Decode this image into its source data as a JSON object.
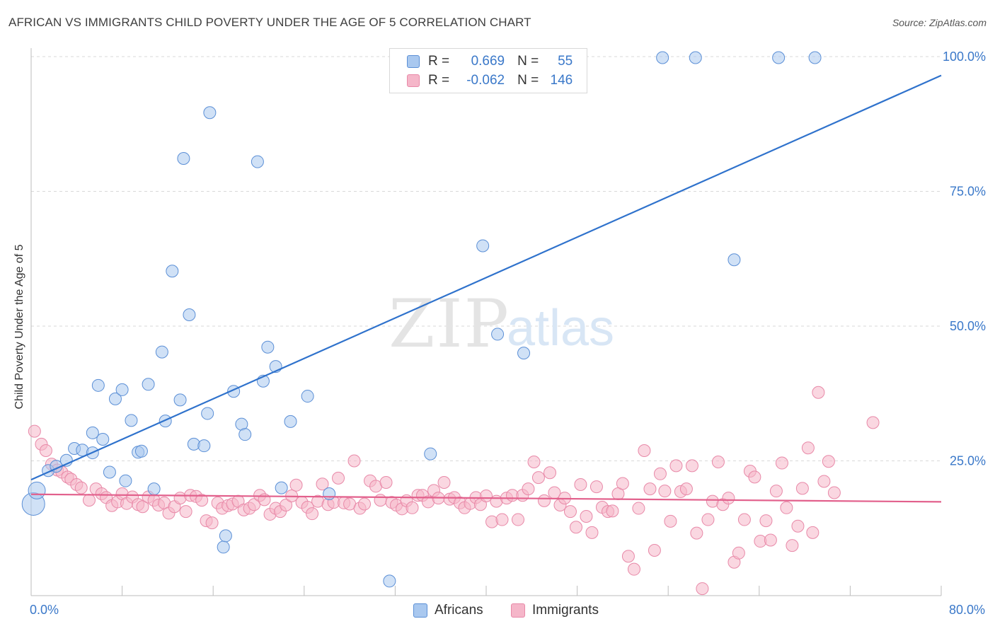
{
  "header": {
    "title": "AFRICAN VS IMMIGRANTS CHILD POVERTY UNDER THE AGE OF 5 CORRELATION CHART",
    "source": "Source: ZipAtlas.com"
  },
  "watermark": {
    "text_zip": "ZIP",
    "text_atlas": "atlas"
  },
  "legend_top": {
    "rows": [
      {
        "r_label": "R = ",
        "r_value": "0.669",
        "n_label": "N = ",
        "n_value": "55"
      },
      {
        "r_label": "R = ",
        "r_value": "-0.062",
        "n_label": "N = ",
        "n_value": "146"
      }
    ]
  },
  "legend_bottom": {
    "africans": "Africans",
    "immigrants": "Immigrants"
  },
  "colors": {
    "africans_fill": "#a9c8ef",
    "africans_stroke": "#5b8fd6",
    "africans_line": "#2f72cc",
    "immigrants_fill": "#f5b6c9",
    "immigrants_stroke": "#e889a8",
    "immigrants_line": "#e2608c",
    "tick_label": "#3a78c9",
    "grid": "#d9d9d9"
  },
  "chart_data": {
    "type": "scatter",
    "title": "AFRICAN VS IMMIGRANTS CHILD POVERTY UNDER THE AGE OF 5 CORRELATION CHART",
    "xlabel": "",
    "ylabel": "Child Poverty Under the Age of 5",
    "xlim": [
      0,
      80
    ],
    "ylim": [
      0,
      100
    ],
    "x_tick_labels": [
      "0.0%",
      "80.0%"
    ],
    "y_ticks": [
      25,
      50,
      75,
      100
    ],
    "y_tick_labels": [
      "25.0%",
      "50.0%",
      "75.0%",
      "100.0%"
    ],
    "grid": true,
    "legend": "bottom-center",
    "series": [
      {
        "name": "Africans",
        "R": 0.669,
        "N": 55,
        "trend": {
          "x0": 0,
          "y0": 21.5,
          "x1": 80,
          "y1": 96.5
        },
        "points": [
          [
            0.2,
            17.0,
            3
          ],
          [
            0.5,
            19.5,
            2
          ],
          [
            1.5,
            23.2,
            1
          ],
          [
            2.2,
            24.0,
            1
          ],
          [
            3.1,
            25.1,
            1
          ],
          [
            3.8,
            27.3,
            1
          ],
          [
            4.5,
            27.0,
            1
          ],
          [
            5.4,
            30.2,
            1
          ],
          [
            5.4,
            26.5,
            1
          ],
          [
            5.9,
            39.0,
            1
          ],
          [
            6.3,
            29.0,
            1
          ],
          [
            6.9,
            22.9,
            1
          ],
          [
            7.4,
            36.5,
            1
          ],
          [
            8.0,
            38.2,
            1
          ],
          [
            8.3,
            21.3,
            1
          ],
          [
            8.8,
            32.5,
            1
          ],
          [
            9.4,
            26.6,
            1
          ],
          [
            9.7,
            26.8,
            1
          ],
          [
            10.3,
            39.2,
            1
          ],
          [
            10.8,
            19.8,
            1
          ],
          [
            11.5,
            45.2,
            1
          ],
          [
            11.8,
            32.4,
            1
          ],
          [
            12.4,
            60.2,
            1
          ],
          [
            13.1,
            36.3,
            1
          ],
          [
            13.4,
            81.1,
            1
          ],
          [
            13.9,
            52.1,
            1
          ],
          [
            14.3,
            28.1,
            1
          ],
          [
            15.2,
            27.8,
            1
          ],
          [
            15.5,
            33.8,
            1
          ],
          [
            15.7,
            89.6,
            1
          ],
          [
            16.9,
            9.0,
            1
          ],
          [
            17.1,
            11.1,
            1
          ],
          [
            17.8,
            37.9,
            1
          ],
          [
            18.5,
            31.8,
            1
          ],
          [
            18.8,
            29.9,
            1
          ],
          [
            19.9,
            80.5,
            1
          ],
          [
            20.4,
            39.8,
            1
          ],
          [
            20.8,
            46.1,
            1
          ],
          [
            21.5,
            42.5,
            1
          ],
          [
            22.0,
            20.0,
            1
          ],
          [
            22.8,
            32.3,
            1
          ],
          [
            24.3,
            37.0,
            1
          ],
          [
            26.2,
            18.9,
            1
          ],
          [
            31.5,
            2.7,
            1
          ],
          [
            35.1,
            26.3,
            1
          ],
          [
            39.7,
            64.9,
            1
          ],
          [
            41.0,
            48.5,
            1
          ],
          [
            43.3,
            45.0,
            1
          ],
          [
            55.5,
            99.8,
            1
          ],
          [
            58.4,
            99.8,
            1
          ],
          [
            61.8,
            62.3,
            1
          ],
          [
            65.7,
            99.8,
            1
          ],
          [
            68.9,
            99.8,
            1
          ]
        ]
      },
      {
        "name": "Immigrants",
        "R": -0.062,
        "N": 146,
        "trend": {
          "x0": 0,
          "y0": 18.8,
          "x1": 80,
          "y1": 17.4
        },
        "points": [
          [
            0.3,
            30.5
          ],
          [
            0.9,
            28.1
          ],
          [
            1.3,
            26.9
          ],
          [
            1.8,
            24.4
          ],
          [
            2.3,
            23.3
          ],
          [
            2.7,
            22.9
          ],
          [
            3.2,
            22.0
          ],
          [
            3.5,
            21.6
          ],
          [
            4.0,
            20.6
          ],
          [
            4.4,
            20.0
          ],
          [
            5.1,
            17.7
          ],
          [
            5.7,
            19.8
          ],
          [
            6.2,
            18.9
          ],
          [
            6.6,
            18.2
          ],
          [
            7.1,
            16.7
          ],
          [
            7.6,
            17.4
          ],
          [
            8.0,
            18.9
          ],
          [
            8.4,
            17.1
          ],
          [
            8.9,
            18.3
          ],
          [
            9.4,
            16.9
          ],
          [
            9.8,
            16.5
          ],
          [
            10.3,
            18.3
          ],
          [
            10.8,
            17.7
          ],
          [
            11.2,
            16.8
          ],
          [
            11.7,
            17.2
          ],
          [
            12.1,
            15.3
          ],
          [
            12.6,
            16.5
          ],
          [
            13.1,
            18.1
          ],
          [
            13.6,
            15.6
          ],
          [
            14.0,
            18.6
          ],
          [
            14.5,
            18.4
          ],
          [
            15.0,
            17.7
          ],
          [
            15.4,
            13.9
          ],
          [
            15.9,
            13.5
          ],
          [
            16.4,
            17.2
          ],
          [
            16.8,
            16.2
          ],
          [
            17.3,
            16.7
          ],
          [
            17.7,
            17.0
          ],
          [
            18.2,
            17.5
          ],
          [
            18.7,
            15.9
          ],
          [
            19.2,
            16.2
          ],
          [
            19.6,
            16.9
          ],
          [
            20.1,
            18.6
          ],
          [
            20.5,
            17.8
          ],
          [
            21.0,
            15.1
          ],
          [
            21.5,
            16.2
          ],
          [
            21.9,
            15.6
          ],
          [
            22.4,
            16.8
          ],
          [
            22.9,
            18.5
          ],
          [
            23.3,
            20.5
          ],
          [
            23.8,
            17.3
          ],
          [
            24.3,
            16.4
          ],
          [
            24.7,
            15.2
          ],
          [
            25.2,
            17.5
          ],
          [
            25.6,
            20.7
          ],
          [
            26.1,
            16.9
          ],
          [
            26.6,
            17.3
          ],
          [
            27.0,
            21.8
          ],
          [
            27.5,
            17.2
          ],
          [
            28.0,
            17.0
          ],
          [
            28.4,
            25.0
          ],
          [
            28.9,
            16.2
          ],
          [
            29.3,
            17.0
          ],
          [
            29.8,
            21.3
          ],
          [
            30.3,
            20.3
          ],
          [
            30.7,
            17.7
          ],
          [
            31.2,
            21.0
          ],
          [
            31.7,
            17.3
          ],
          [
            32.1,
            16.8
          ],
          [
            32.6,
            16.1
          ],
          [
            33.0,
            17.6
          ],
          [
            33.5,
            16.3
          ],
          [
            34.0,
            18.6
          ],
          [
            34.4,
            18.6
          ],
          [
            34.9,
            17.4
          ],
          [
            35.4,
            19.5
          ],
          [
            35.8,
            18.1
          ],
          [
            36.3,
            21.0
          ],
          [
            36.8,
            17.9
          ],
          [
            37.2,
            18.2
          ],
          [
            37.7,
            17.2
          ],
          [
            38.1,
            16.3
          ],
          [
            38.6,
            17.1
          ],
          [
            39.1,
            18.2
          ],
          [
            39.5,
            16.9
          ],
          [
            40.0,
            18.5
          ],
          [
            40.5,
            13.7
          ],
          [
            40.9,
            17.5
          ],
          [
            41.4,
            14.1
          ],
          [
            41.8,
            18.1
          ],
          [
            42.3,
            18.6
          ],
          [
            42.8,
            14.1
          ],
          [
            43.2,
            18.6
          ],
          [
            43.7,
            19.8
          ],
          [
            44.2,
            24.8
          ],
          [
            44.6,
            21.9
          ],
          [
            45.1,
            17.6
          ],
          [
            45.6,
            22.8
          ],
          [
            46.0,
            19.1
          ],
          [
            46.5,
            16.8
          ],
          [
            46.9,
            18.1
          ],
          [
            47.4,
            15.6
          ],
          [
            47.9,
            12.7
          ],
          [
            48.3,
            20.6
          ],
          [
            48.8,
            14.7
          ],
          [
            49.3,
            11.7
          ],
          [
            49.7,
            20.2
          ],
          [
            50.2,
            16.4
          ],
          [
            50.7,
            15.6
          ],
          [
            51.1,
            15.7
          ],
          [
            51.6,
            18.9
          ],
          [
            52.0,
            20.8
          ],
          [
            52.5,
            7.3
          ],
          [
            53.0,
            4.9
          ],
          [
            53.4,
            16.2
          ],
          [
            53.9,
            26.9
          ],
          [
            54.4,
            19.8
          ],
          [
            54.8,
            8.4
          ],
          [
            55.3,
            22.6
          ],
          [
            55.7,
            19.4
          ],
          [
            56.2,
            13.8
          ],
          [
            56.7,
            24.1
          ],
          [
            57.1,
            19.3
          ],
          [
            57.6,
            19.8
          ],
          [
            58.1,
            24.1
          ],
          [
            58.5,
            11.6
          ],
          [
            59.0,
            1.3
          ],
          [
            59.5,
            14.1
          ],
          [
            59.9,
            17.5
          ],
          [
            60.4,
            24.8
          ],
          [
            60.8,
            16.9
          ],
          [
            61.3,
            18.1
          ],
          [
            61.8,
            6.2
          ],
          [
            62.2,
            7.9
          ],
          [
            62.7,
            14.1
          ],
          [
            63.2,
            23.1
          ],
          [
            63.6,
            22.0
          ],
          [
            64.1,
            10.1
          ],
          [
            64.6,
            13.9
          ],
          [
            65.0,
            10.3
          ],
          [
            65.5,
            19.4
          ],
          [
            66.0,
            24.6
          ],
          [
            66.4,
            16.3
          ],
          [
            66.9,
            9.3
          ],
          [
            67.4,
            12.9
          ],
          [
            67.8,
            19.9
          ],
          [
            68.3,
            27.4
          ],
          [
            68.7,
            11.7
          ],
          [
            69.2,
            37.7
          ],
          [
            69.7,
            21.2
          ],
          [
            70.1,
            24.9
          ],
          [
            70.6,
            19.1
          ],
          [
            74.0,
            32.1
          ]
        ]
      }
    ]
  }
}
